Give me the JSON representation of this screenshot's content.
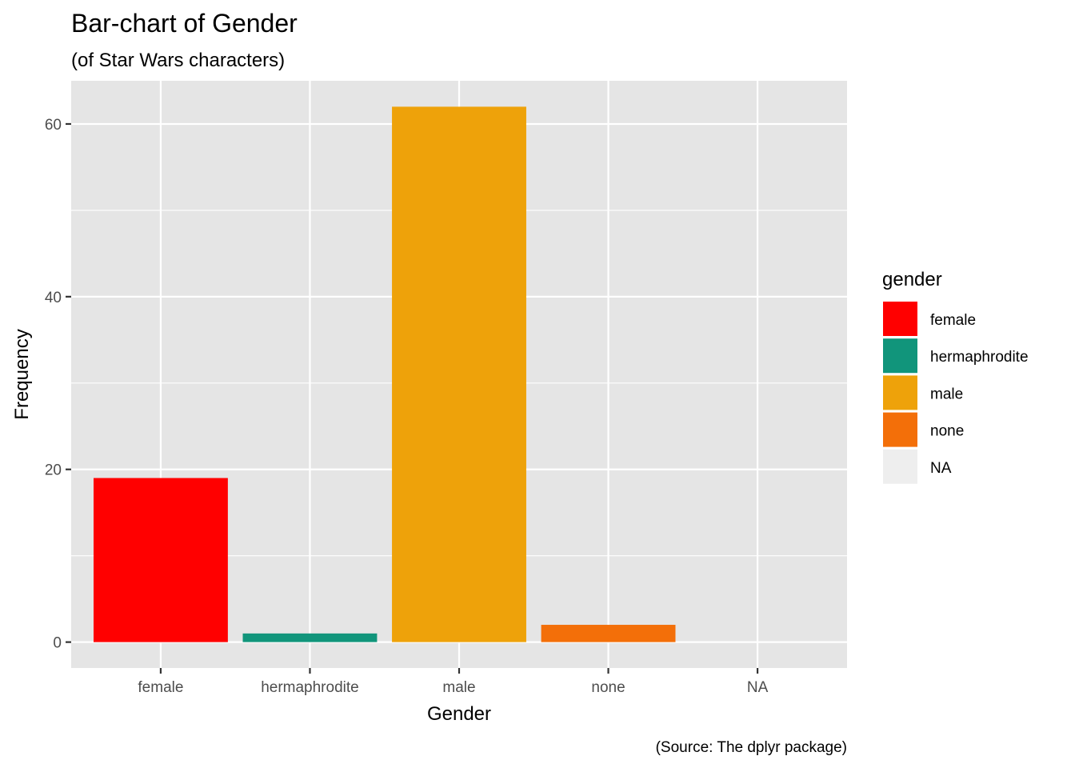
{
  "chart_data": {
    "type": "bar",
    "title": "Bar-chart of Gender",
    "subtitle": "(of Star Wars characters)",
    "caption": "(Source: The dplyr package)",
    "xlabel": "Gender",
    "ylabel": "Frequency",
    "categories": [
      "female",
      "hermaphrodite",
      "male",
      "none",
      "NA"
    ],
    "values": [
      19,
      1,
      62,
      2,
      0
    ],
    "colors": [
      "#ff0000",
      "#11957b",
      "#eea20a",
      "#f36f09",
      "#eeeeee"
    ],
    "ylim": [
      -3,
      65
    ],
    "yticks": [
      0,
      20,
      40,
      60
    ],
    "yticks_minor": [
      10,
      30,
      50
    ],
    "grid": true,
    "panel_background": "#e5e5e5",
    "legend": {
      "title": "gender",
      "position": "right",
      "entries": [
        "female",
        "hermaphrodite",
        "male",
        "none",
        "NA"
      ]
    }
  }
}
